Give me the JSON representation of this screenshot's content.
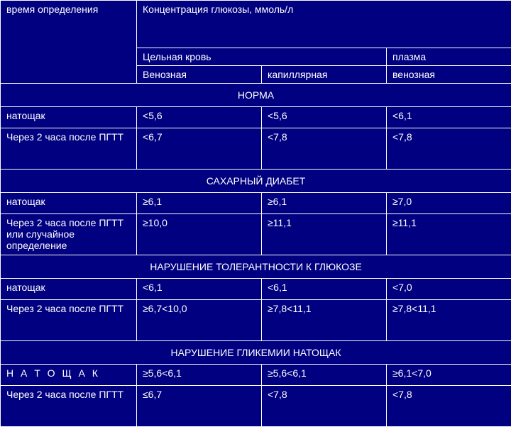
{
  "colors": {
    "background": "#000080",
    "border": "#ffffff",
    "text": "#ffffff"
  },
  "header": {
    "time_col": "время определения",
    "conc_title": "Концентрация глюкозы, ммоль/л",
    "whole_blood": "Цельная кровь",
    "plasma": "плазма",
    "venous": "Венозная",
    "capillary": "капиллярная",
    "venous2": "венозная"
  },
  "sections": [
    {
      "title": "НОРМА",
      "rows": [
        {
          "label": "натощак",
          "v1": "<5,6",
          "v2": "<5,6",
          "v3": "<6,1"
        },
        {
          "label": "Через 2 часа после ПГТТ",
          "v1": "<6,7",
          "v2": "<7,8",
          "v3": "<7,8"
        }
      ]
    },
    {
      "title": "САХАРНЫЙ ДИАБЕТ",
      "rows": [
        {
          "label": "натощак",
          "v1": "≥6,1",
          "v2": "≥6,1",
          "v3": "≥7,0"
        },
        {
          "label": "Через 2 часа после ПГТТ или случайное определение",
          "v1": "≥10,0",
          "v2": "≥11,1",
          "v3": "≥11,1"
        }
      ]
    },
    {
      "title": "НАРУШЕНИЕ ТОЛЕРАНТНОСТИ К ГЛЮКОЗЕ",
      "rows": [
        {
          "label": "натощак",
          "v1": "<6,1",
          "v2": "<6,1",
          "v3": "<7,0"
        },
        {
          "label": "Через 2 часа после ПГТТ",
          "v1": "≥6,7<10,0",
          "v2": "≥7,8<11,1",
          "v3": "≥7,8<11,1"
        }
      ]
    },
    {
      "title": "НАРУШЕНИЕ ГЛИКЕМИИ НАТОЩАК",
      "rows": [
        {
          "label": "Н А Т О Щ А К",
          "v1": "≥5,6<6,1",
          "v2": "≥5,6<6,1",
          "v3": "≥6,1<7,0",
          "spaced": true
        },
        {
          "label": "Через 2 часа после ПГТТ",
          "v1": "≤6,7",
          "v2": "<7,8",
          "v3": "<7,8"
        }
      ]
    }
  ]
}
